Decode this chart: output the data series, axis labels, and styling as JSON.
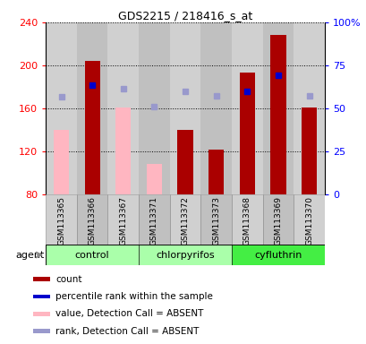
{
  "title": "GDS2215 / 218416_s_at",
  "samples": [
    "GSM113365",
    "GSM113366",
    "GSM113367",
    "GSM113371",
    "GSM113372",
    "GSM113373",
    "GSM113368",
    "GSM113369",
    "GSM113370"
  ],
  "count_values": [
    null,
    204,
    null,
    null,
    140,
    122,
    193,
    228,
    161
  ],
  "count_color": "#AA0000",
  "absent_value_values": [
    140,
    null,
    161,
    108,
    null,
    null,
    null,
    null,
    null
  ],
  "absent_value_color": "#FFB6C1",
  "percentile_rank_present": [
    null,
    182,
    null,
    null,
    null,
    null,
    176,
    191,
    null
  ],
  "percentile_rank_absent": [
    171,
    null,
    178,
    162,
    176,
    172,
    null,
    null,
    172
  ],
  "percentile_rank_present_color": "#0000CC",
  "percentile_rank_absent_color": "#9999CC",
  "ylim_left": [
    80,
    240
  ],
  "yticks_left": [
    80,
    120,
    160,
    200,
    240
  ],
  "yticks_right": [
    0,
    25,
    50,
    75,
    100
  ],
  "yticklabels_right": [
    "0",
    "25",
    "50",
    "75",
    "100%"
  ],
  "sample_bg_colors": [
    "#d0d0d0",
    "#c0c0c0"
  ],
  "group_data": [
    {
      "name": "control",
      "start": 0,
      "end": 2,
      "color": "#aaffaa"
    },
    {
      "name": "chlorpyrifos",
      "start": 3,
      "end": 5,
      "color": "#aaffaa"
    },
    {
      "name": "cyfluthrin",
      "start": 6,
      "end": 8,
      "color": "#44ee44"
    }
  ],
  "legend": [
    {
      "label": "count",
      "color": "#AA0000"
    },
    {
      "label": "percentile rank within the sample",
      "color": "#0000CC"
    },
    {
      "label": "value, Detection Call = ABSENT",
      "color": "#FFB6C1"
    },
    {
      "label": "rank, Detection Call = ABSENT",
      "color": "#9999CC"
    }
  ],
  "agent_label": "agent"
}
